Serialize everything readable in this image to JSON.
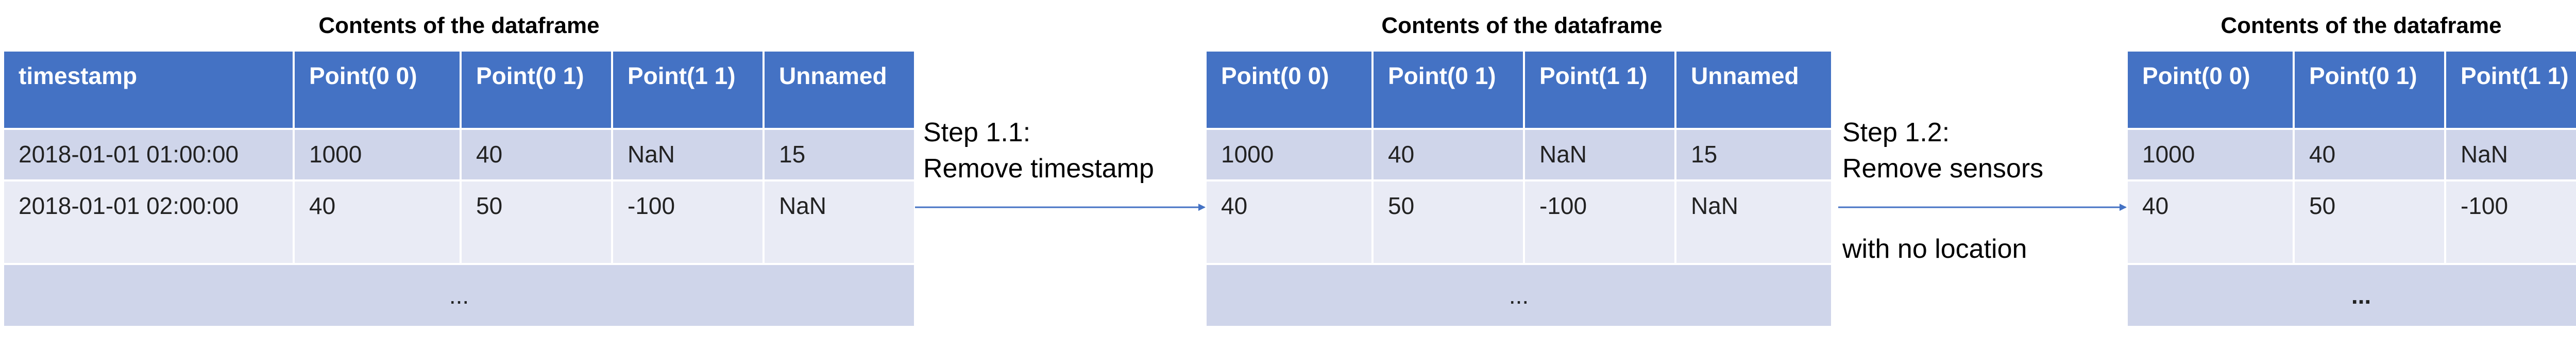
{
  "panel1": {
    "caption": "Contents of the dataframe",
    "headers": [
      "timestamp",
      "Point(0 0)",
      "Point(0 1)",
      "Point(1 1)",
      "Unnamed"
    ],
    "rows": [
      [
        "2018-01-01 01:00:00",
        "1000",
        "40",
        "NaN",
        "15"
      ],
      [
        "2018-01-01 02:00:00",
        "40",
        "50",
        "-100",
        "NaN"
      ]
    ],
    "ellipsis": "..."
  },
  "panel2": {
    "caption": "Contents of the dataframe",
    "headers": [
      "Point(0 0)",
      "Point(0 1)",
      "Point(1 1)",
      "Unnamed"
    ],
    "rows": [
      [
        "1000",
        "40",
        "NaN",
        "15"
      ],
      [
        "40",
        "50",
        "-100",
        "NaN"
      ]
    ],
    "ellipsis": "..."
  },
  "panel3": {
    "caption": "Contents of the dataframe",
    "headers": [
      "Point(0 0)",
      "Point(0 1)",
      "Point(1 1)"
    ],
    "rows": [
      [
        "1000",
        "40",
        "NaN"
      ],
      [
        "40",
        "50",
        "-100"
      ]
    ],
    "ellipsis": "..."
  },
  "step1": {
    "line1": "Step 1.1:",
    "line2": "Remove timestamp"
  },
  "step2": {
    "line1": "Step 1.2:",
    "line2": "Remove sensors",
    "line3": "with no location"
  },
  "colors": {
    "header": "#4472c4",
    "row_dark": "#cfd5ea",
    "row_light": "#e9ebf5",
    "arrow": "#4472c4"
  }
}
